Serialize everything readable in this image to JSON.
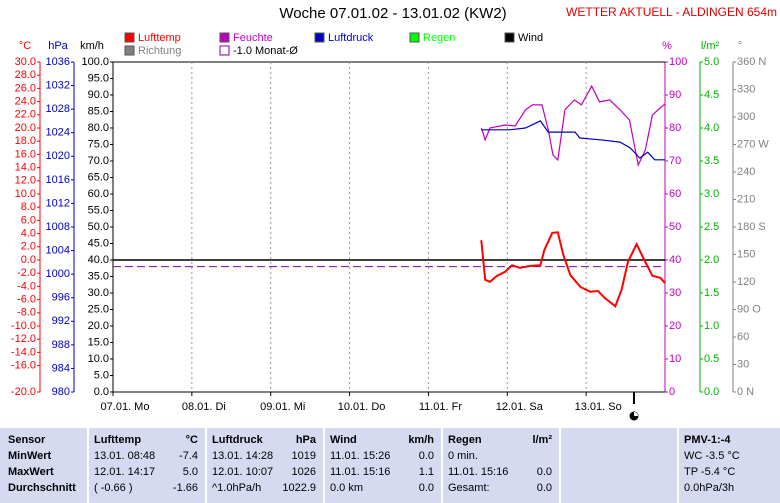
{
  "chart_data": {
    "type": "line",
    "title": "Woche 07.01.02 - 13.01.02 (KW2)",
    "subtitle": "WETTER AKTUELL - ALDINGEN 654m",
    "categories": [
      "07.01. Mo",
      "08.01. Di",
      "09.01. Mi",
      "10.01. Do",
      "11.01. Fr",
      "12.01. Sa",
      "13.01. So"
    ],
    "xlim": [
      0,
      7
    ],
    "grid": true,
    "axes": [
      {
        "label": "°C",
        "color": "#ff0000",
        "side": "left",
        "lim": [
          -20,
          30
        ],
        "ticks": [
          {
            "value": 30,
            "label": "30.0"
          },
          {
            "value": 28,
            "label": "28.0"
          },
          {
            "value": 26,
            "label": "26.0"
          },
          {
            "value": 24,
            "label": "24.0"
          },
          {
            "value": 22,
            "label": "22.0"
          },
          {
            "value": 20,
            "label": "20.0"
          },
          {
            "value": 18,
            "label": "18.0"
          },
          {
            "value": 16,
            "label": "16.0"
          },
          {
            "value": 14,
            "label": "14.0"
          },
          {
            "value": 12,
            "label": "12.0"
          },
          {
            "value": 10,
            "label": "10.0"
          },
          {
            "value": 8,
            "label": "8.0"
          },
          {
            "value": 6,
            "label": "6.0"
          },
          {
            "value": 4,
            "label": "4.0"
          },
          {
            "value": 2,
            "label": "2.0"
          },
          {
            "value": 0,
            "label": "0.0"
          },
          {
            "value": -2,
            "label": "-2.0"
          },
          {
            "value": -4,
            "label": "-4.0"
          },
          {
            "value": -6,
            "label": "-6.0"
          },
          {
            "value": -8,
            "label": "-8.0"
          },
          {
            "value": -10,
            "label": "-10.0"
          },
          {
            "value": -12,
            "label": "-12.0"
          },
          {
            "value": -14,
            "label": "-14.0"
          },
          {
            "value": -16,
            "label": "-16.0"
          },
          {
            "value": -20,
            "label": "-20.0"
          }
        ]
      },
      {
        "label": "hPa",
        "color": "#0000c0",
        "side": "left",
        "lim": [
          980,
          1036
        ],
        "ticks": [
          1036,
          1032,
          1028,
          1024,
          1020,
          1016,
          1012,
          1008,
          1004,
          1000,
          996,
          992,
          988,
          984,
          980
        ]
      },
      {
        "label": "km/h",
        "color": "#000000",
        "side": "left",
        "lim": [
          0,
          100
        ],
        "ticks": [
          {
            "value": 100,
            "label": "100.0"
          },
          {
            "value": 95,
            "label": "95.0"
          },
          {
            "value": 90,
            "label": "90.0"
          },
          {
            "value": 85,
            "label": "85.0"
          },
          {
            "value": 80,
            "label": "80.0"
          },
          {
            "value": 75,
            "label": "75.0"
          },
          {
            "value": 70,
            "label": "70.0"
          },
          {
            "value": 65,
            "label": "65.0"
          },
          {
            "value": 60,
            "label": "60.0"
          },
          {
            "value": 55,
            "label": "55.0"
          },
          {
            "value": 50,
            "label": "50.0"
          },
          {
            "value": 45,
            "label": "45.0"
          },
          {
            "value": 40,
            "label": "40.0"
          },
          {
            "value": 35,
            "label": "35.0"
          },
          {
            "value": 30,
            "label": "30.0"
          },
          {
            "value": 25,
            "label": "25.0"
          },
          {
            "value": 20,
            "label": "20.0"
          },
          {
            "value": 15,
            "label": "15.0"
          },
          {
            "value": 10,
            "label": "10.0"
          },
          {
            "value": 5,
            "label": "5.0"
          },
          {
            "value": 0,
            "label": "0.0"
          }
        ]
      },
      {
        "label": "%",
        "color": "#c000c0",
        "side": "right",
        "lim": [
          0,
          100
        ],
        "ticks": [
          100,
          90,
          80,
          70,
          60,
          50,
          40,
          30,
          20,
          10,
          0
        ]
      },
      {
        "label": "l/m²",
        "color": "#00b000",
        "side": "right",
        "lim": [
          0,
          5
        ],
        "ticks": [
          {
            "value": 5,
            "label": "5.0"
          },
          {
            "value": 4.5,
            "label": "4.5"
          },
          {
            "value": 4,
            "label": "4.0"
          },
          {
            "value": 3.5,
            "label": "3.5"
          },
          {
            "value": 3,
            "label": "3.0"
          },
          {
            "value": 2.5,
            "label": "2.5"
          },
          {
            "value": 2,
            "label": "2.0"
          },
          {
            "value": 1.5,
            "label": "1.5"
          },
          {
            "value": 1,
            "label": "1.0"
          },
          {
            "value": 0.5,
            "label": "0.5"
          },
          {
            "value": 0,
            "label": "0.0"
          }
        ]
      },
      {
        "label": "°",
        "color": "#808080",
        "side": "right",
        "lim": [
          0,
          360
        ],
        "ticks": [
          {
            "value": 360,
            "label": "360 N"
          },
          330,
          300,
          {
            "value": 270,
            "label": "270 W"
          },
          240,
          210,
          {
            "value": 180,
            "label": "180 S"
          },
          150,
          120,
          {
            "value": 90,
            "label": "90 O"
          },
          60,
          30,
          {
            "value": 0,
            "label": "0 N"
          }
        ]
      }
    ],
    "series": [
      {
        "name": "Lufttemp",
        "color": "#ff0000",
        "axis": "°C",
        "x": [
          4.67,
          4.72,
          4.78,
          4.87,
          4.97,
          5.06,
          5.16,
          5.29,
          5.42,
          5.47,
          5.57,
          5.64,
          5.71,
          5.8,
          5.93,
          6.05,
          6.15,
          6.24,
          6.37,
          6.45,
          6.53,
          6.64,
          6.75,
          6.84,
          6.94,
          7.0
        ],
        "values": [
          3.0,
          -3.0,
          -3.3,
          -2.4,
          -1.8,
          -0.8,
          -1.2,
          -0.9,
          -0.8,
          1.5,
          4.1,
          4.2,
          0.8,
          -2.3,
          -4.1,
          -4.8,
          -4.7,
          -5.8,
          -7.0,
          -4.5,
          -0.3,
          2.4,
          -0.3,
          -2.4,
          -2.7,
          -3.5
        ]
      },
      {
        "name": "Feuchte",
        "color": "#c000c0",
        "axis": "%",
        "x": [
          4.67,
          4.72,
          4.78,
          4.97,
          5.1,
          5.23,
          5.32,
          5.44,
          5.52,
          5.58,
          5.64,
          5.73,
          5.85,
          5.94,
          6.07,
          6.17,
          6.3,
          6.43,
          6.55,
          6.66,
          6.75,
          6.84,
          6.91,
          7.0
        ],
        "values": [
          80,
          76.4,
          80,
          80.9,
          80.6,
          85.5,
          87,
          87,
          79.4,
          71.8,
          70.3,
          85.5,
          88.5,
          87,
          92.7,
          87.9,
          88.5,
          85.5,
          82.4,
          68.8,
          73.3,
          83.9,
          85.5,
          87.3
        ]
      },
      {
        "name": "Luftdruck",
        "color": "#0000c0",
        "axis": "hPa",
        "x": [
          4.67,
          5.03,
          5.23,
          5.42,
          5.52,
          5.86,
          5.92,
          6.18,
          6.43,
          6.56,
          6.68,
          6.78,
          6.87,
          7.0
        ],
        "values": [
          1024.5,
          1024.5,
          1024.8,
          1026.0,
          1024.1,
          1024.1,
          1023.1,
          1022.8,
          1022.4,
          1021.4,
          1019.7,
          1020.7,
          1019.4,
          1019.4
        ]
      },
      {
        "name": "Regen",
        "color": "#00ff00",
        "axis": "l/m²"
      },
      {
        "name": "Wind",
        "color": "#000000",
        "axis": "km/h"
      },
      {
        "name": "Richtung",
        "color": "#808080",
        "axis": "°"
      }
    ],
    "reference": {
      "name": "-1.0 Monat-Ø",
      "value": -1.0,
      "axis": "°C",
      "color": "#8000a0"
    }
  },
  "table": {
    "header": [
      "Sensor",
      "Lufttemp",
      "°C",
      "Luftdruck",
      "hPa",
      "Wind",
      "km/h",
      "Regen",
      "l/m²",
      "PMV-1:-4"
    ],
    "rows": [
      [
        "MinWert",
        "13.01.  08:48",
        "-7.4",
        "13.01.  14:28",
        "1019",
        "11.01.  15:26",
        "0.0",
        "0 min.",
        null,
        "WC -3.5 °C"
      ],
      [
        "MaxWert",
        "12.01.  14:17",
        "5.0",
        "12.01.  10:07",
        "1026",
        "11.01.  15:16",
        "1.1",
        "11.01.  15:16",
        "0.0",
        "TP -5.4 °C"
      ],
      [
        "Durchschnitt",
        "( -0.66 )",
        "-1.66",
        "^1.0hPa/h",
        "1022.9",
        "0.0 km",
        "0.0",
        "Gesamt:",
        "0.0",
        "0.0hPa/3h"
      ]
    ]
  }
}
